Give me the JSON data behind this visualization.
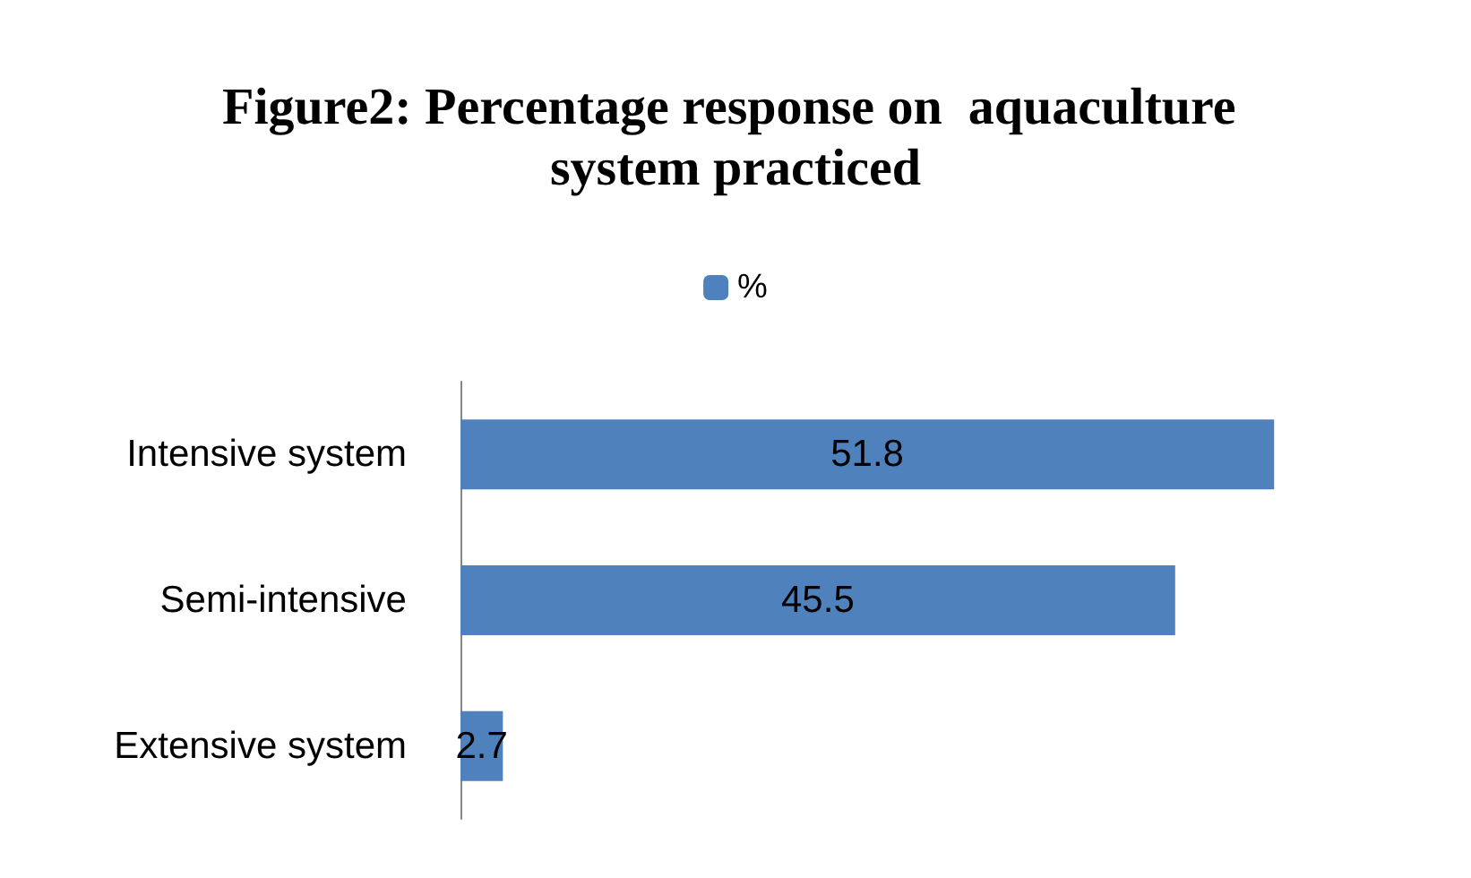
{
  "chart_data": {
    "type": "bar",
    "orientation": "horizontal",
    "title": "Figure2: Percentage response on  aquaculture system practiced",
    "categories": [
      "Intensive system",
      "Semi-intensive",
      "Extensive system"
    ],
    "series": [
      {
        "name": "%",
        "color": "#4f81bd",
        "values": [
          51.8,
          45.5,
          2.7
        ]
      }
    ],
    "tick_labels": "y",
    "data_labels": true,
    "legend": "top",
    "grid": false
  }
}
